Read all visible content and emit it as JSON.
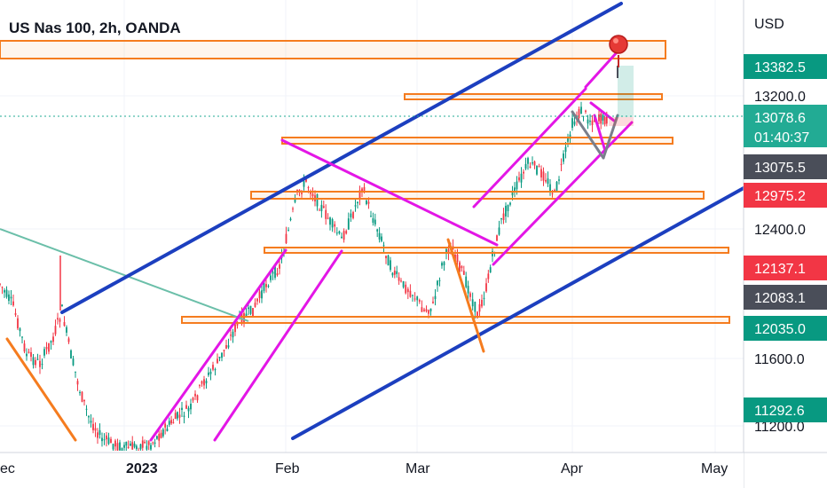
{
  "chart_data": {
    "type": "candlestick",
    "title": "US Nas 100, 2h, OANDA",
    "currency": "USD",
    "x_ticks": [
      "ec",
      "2023",
      "Feb",
      "Mar",
      "Apr",
      "May"
    ],
    "y_ticks": [
      "13200.0",
      "12400.0",
      "11600.0",
      "11200.0"
    ],
    "price_badges": [
      {
        "label": "13382.5",
        "color": "#089981"
      },
      {
        "label": "13078.6",
        "sublabel": "01:40:37",
        "color": "#22ab94"
      },
      {
        "label": "13075.5",
        "color": "#4a4e59"
      },
      {
        "label": "12975.2",
        "color": "#f23645"
      },
      {
        "label": "12137.1",
        "color": "#f23645"
      },
      {
        "label": "12083.1",
        "color": "#4a4e59"
      },
      {
        "label": "12035.0",
        "color": "#089981"
      },
      {
        "label": "11292.6",
        "color": "#089981"
      }
    ],
    "colors": {
      "up": "#089981",
      "down": "#f23645",
      "channel_blue": "#1c3fbf",
      "channel_magenta": "#e316e6",
      "zone_orange": "#f57c1f",
      "trendline_teal": "#6bbfa9"
    }
  }
}
